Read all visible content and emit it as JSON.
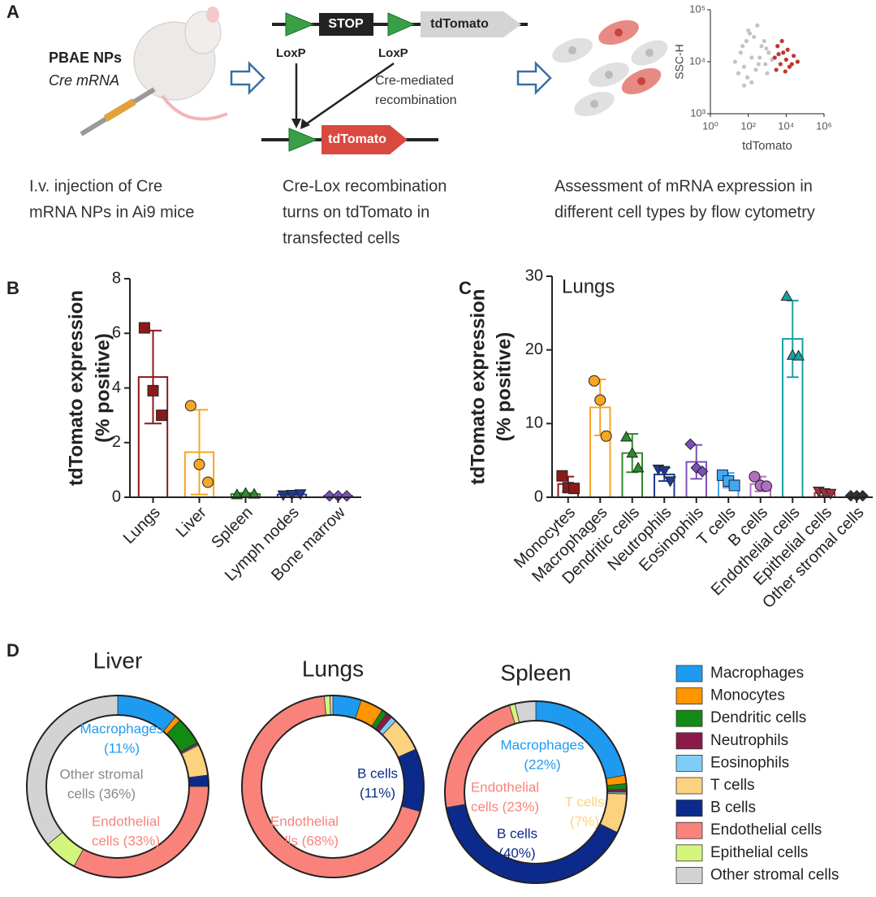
{
  "panel_a": {
    "label": "A",
    "drug": "PBAE NPs",
    "cargo": "Cre mRNA",
    "stop": "STOP",
    "reporter": "tdTomato",
    "loxp": [
      "LoxP",
      "LoxP"
    ],
    "recombination": [
      "Cre-mediated",
      "recombination"
    ],
    "recombined_reporter": "tdTomato",
    "captions": [
      [
        "I.v. injection of Cre",
        "mRNA NPs in Ai9 mice"
      ],
      [
        "Cre-Lox recombination",
        "turns on tdTomato in",
        "transfected cells"
      ],
      [
        "Assessment of mRNA expression in",
        "different cell types by flow cytometry"
      ]
    ]
  },
  "chart_data": [
    {
      "type": "scatter",
      "xlabel": "tdTomato",
      "ylabel": "SSC-H",
      "log_x": true,
      "log_y": true,
      "xlim": [
        1,
        1000000
      ],
      "xticks": [
        {
          "value": 1,
          "label": "10⁰"
        },
        {
          "value": 100,
          "label": "10²"
        },
        {
          "value": 10000,
          "label": "10⁴"
        },
        {
          "value": 1000000,
          "label": "10⁶"
        }
      ],
      "ylim": [
        1000,
        100000
      ],
      "yticks": [
        {
          "value": 1000,
          "label": "10³"
        },
        {
          "value": 10000,
          "label": "10⁴"
        },
        {
          "value": 100000,
          "label": "10⁵"
        }
      ],
      "series": [
        {
          "color": "#c4c4c4",
          "x": [
            20,
            40,
            60,
            80,
            100,
            150,
            200,
            300,
            500,
            800,
            1200,
            1800,
            30,
            50,
            90,
            120,
            250,
            400,
            700,
            1000,
            60,
            150,
            350,
            900
          ],
          "values": [
            10000,
            15000,
            8000,
            25000,
            40000,
            12000,
            30000,
            50000,
            20000,
            9000,
            15000,
            11000,
            6000,
            20000,
            5000,
            35000,
            7000,
            12000,
            25000,
            6000,
            3500,
            4000,
            9000,
            18000
          ]
        },
        {
          "color": "#c0392b",
          "x": [
            2500,
            3500,
            5000,
            7000,
            10000,
            15000,
            25000,
            40000,
            3000,
            6000,
            9000,
            20000,
            4000,
            12000
          ],
          "values": [
            12000,
            20000,
            9000,
            15000,
            11000,
            8000,
            13000,
            10000,
            7000,
            25000,
            6500,
            9000,
            14000,
            17000
          ]
        }
      ]
    },
    {
      "type": "bar",
      "panel": "B",
      "ylabel": [
        "tdTomato expression",
        "(% positive)"
      ],
      "categories": [
        "Lungs",
        "Liver",
        "Spleen",
        "Lymph nodes",
        "Bone marrow"
      ],
      "values": [
        4.4,
        1.65,
        0.12,
        0.1,
        0.05
      ],
      "errors": [
        1.7,
        1.55,
        0.04,
        0.03,
        0.01
      ],
      "points": [
        [
          6.2,
          3.9,
          3.0
        ],
        [
          3.35,
          1.2,
          0.55
        ],
        [
          0.1,
          0.15,
          0.12
        ],
        [
          0.08,
          0.1,
          0.12
        ],
        [
          0.05,
          0.05,
          0.05
        ]
      ],
      "colors": [
        "#8b1a1a",
        "#f5a623",
        "#2e8b2e",
        "#1f3a93",
        "#7b4fbd"
      ],
      "markers": [
        "square",
        "circle",
        "triangle",
        "triangle-down",
        "diamond"
      ],
      "ylim": [
        0,
        8
      ],
      "yticks": [
        0,
        2,
        4,
        6,
        8
      ]
    },
    {
      "type": "bar",
      "panel": "C",
      "annotation": "Lungs",
      "ylabel": [
        "tdTomato expression",
        "(% positive)"
      ],
      "categories": [
        "Monocytes",
        "Macrophages",
        "Dendritic cells",
        "Neutrophils",
        "Eosinophils",
        "T cells",
        "B cells",
        "Endothelial cells",
        "Epithelial cells",
        "Other stromal cells"
      ],
      "values": [
        1.8,
        12.2,
        6.0,
        3.1,
        4.8,
        2.3,
        1.8,
        21.5,
        0.6,
        0.2
      ],
      "errors": [
        1.0,
        3.8,
        2.6,
        0.9,
        2.3,
        1.0,
        1.0,
        5.2,
        0.4,
        0.15
      ],
      "points": [
        [
          2.9,
          1.3,
          1.2
        ],
        [
          15.8,
          13.2,
          8.3
        ],
        [
          8.2,
          6.0,
          4.0
        ],
        [
          3.8,
          3.6,
          2.2
        ],
        [
          7.2,
          4.0,
          3.5
        ],
        [
          3.0,
          2.2,
          1.6
        ],
        [
          2.8,
          1.6,
          1.5
        ],
        [
          27.3,
          19.3,
          19.2
        ],
        [
          0.8,
          0.6,
          0.5
        ],
        [
          0.2,
          0.2,
          0.2
        ]
      ],
      "colors": [
        "#8b1a1a",
        "#f5a623",
        "#2e8b2e",
        "#1f3a93",
        "#7b4fbd",
        "#3fa9f5",
        "#b070c0",
        "#1aa0a0",
        "#a03040",
        "#333333"
      ],
      "markers": [
        "square",
        "circle",
        "triangle",
        "triangle-down",
        "diamond",
        "square",
        "circle",
        "triangle",
        "triangle-down",
        "diamond"
      ],
      "ylim": [
        0,
        30
      ],
      "yticks": [
        0,
        10,
        20,
        30
      ]
    },
    {
      "type": "donut",
      "panel": "D",
      "categories": [
        "Macrophages",
        "Monocytes",
        "Dendritic cells",
        "Neutrophils",
        "Eosinophils",
        "T cells",
        "B cells",
        "Endothelial cells",
        "Epithelial cells",
        "Other stromal cells"
      ],
      "colors": [
        "#1e9bf0",
        "#ff9500",
        "#138a13",
        "#8b1a4a",
        "#7fcdf5",
        "#fdd27f",
        "#0c2a8c",
        "#f9837b",
        "#d4f57c",
        "#d3d3d3"
      ],
      "rings": [
        {
          "title": "Liver",
          "values": [
            11,
            1,
            5,
            0.3,
            0.2,
            5.5,
            2,
            33,
            6,
            36
          ],
          "value_labels": [
            [
              "Macrophages",
              "(11%)"
            ],
            null,
            null,
            null,
            null,
            null,
            null,
            [
              "Endothelial",
              "cells (33%)"
            ],
            null,
            [
              "Other stromal",
              "cells (36%)"
            ]
          ]
        },
        {
          "title": "Lungs",
          "values": [
            5,
            4,
            1,
            1,
            1,
            6,
            11,
            68,
            1,
            0.5
          ],
          "value_labels": [
            null,
            null,
            null,
            null,
            null,
            null,
            [
              "B cells",
              "(11%)"
            ],
            [
              "Endothelial",
              "cells (68%)"
            ],
            null,
            null
          ]
        },
        {
          "title": "Spleen",
          "values": [
            22,
            1.5,
            1,
            0.5,
            0.3,
            7,
            40,
            23,
            1,
            3.7
          ],
          "value_labels": [
            [
              "Macrophages",
              "(22%)"
            ],
            null,
            null,
            null,
            null,
            [
              "T cells",
              "(7%)"
            ],
            [
              "B cells",
              "(40%)"
            ],
            [
              "Endothelial",
              "cells (23%)"
            ],
            null,
            null
          ]
        }
      ]
    }
  ]
}
